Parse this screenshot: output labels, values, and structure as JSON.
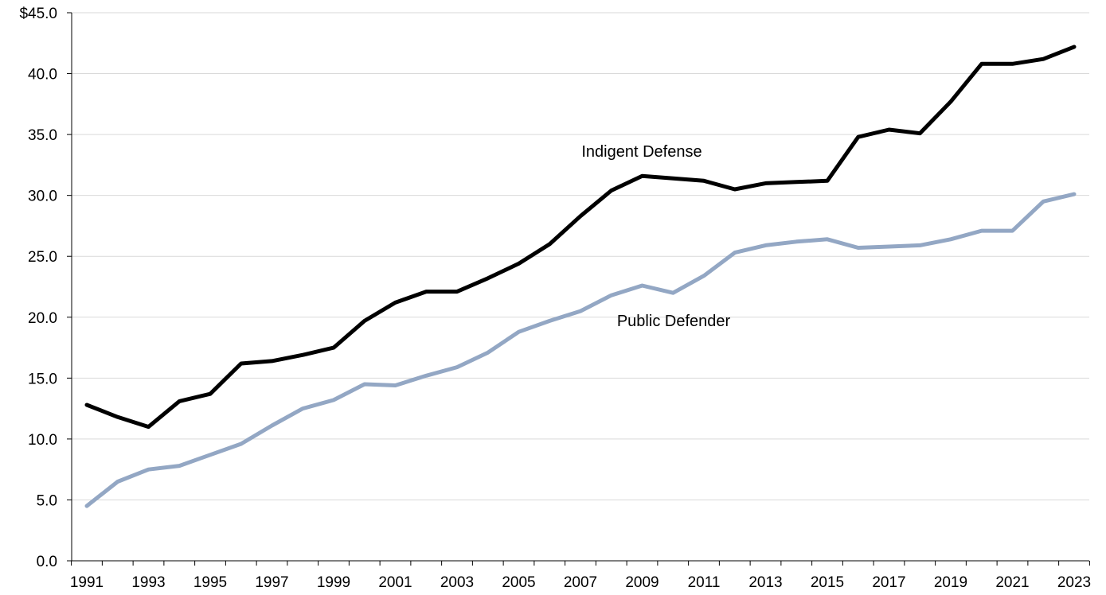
{
  "chart_data": {
    "type": "line",
    "title": "",
    "xlabel": "",
    "ylabel": "",
    "x": [
      1991,
      1992,
      1993,
      1994,
      1995,
      1996,
      1997,
      1998,
      1999,
      2000,
      2001,
      2002,
      2003,
      2004,
      2005,
      2006,
      2007,
      2008,
      2009,
      2010,
      2011,
      2012,
      2013,
      2014,
      2015,
      2016,
      2017,
      2018,
      2019,
      2020,
      2021,
      2022,
      2023
    ],
    "x_tick_labels": [
      "1991",
      "1993",
      "1995",
      "1997",
      "1999",
      "2001",
      "2003",
      "2005",
      "2007",
      "2009",
      "2011",
      "2013",
      "2015",
      "2017",
      "2019",
      "2021",
      "2023"
    ],
    "y_tick_labels": [
      "0.0",
      "5.0",
      "10.0",
      "15.0",
      "20.0",
      "25.0",
      "30.0",
      "35.0",
      "40.0",
      "$45.0"
    ],
    "y_ticks": [
      0,
      5,
      10,
      15,
      20,
      25,
      30,
      35,
      40,
      45
    ],
    "ylim": [
      0,
      45
    ],
    "grid": true,
    "legend": "none (inline series labels)",
    "series": [
      {
        "name": "Indigent Defense",
        "color": "#000000",
        "values": [
          12.8,
          11.8,
          11.0,
          13.1,
          13.7,
          16.2,
          16.4,
          16.9,
          17.5,
          19.7,
          21.2,
          22.1,
          22.1,
          23.2,
          24.4,
          26.0,
          28.3,
          30.4,
          31.6,
          31.4,
          31.2,
          30.5,
          31.0,
          31.1,
          31.2,
          34.8,
          35.4,
          35.1,
          37.7,
          40.8,
          40.8,
          41.2,
          42.2
        ]
      },
      {
        "name": "Public Defender",
        "color": "#93a7c4",
        "values": [
          4.5,
          6.5,
          7.5,
          7.8,
          8.7,
          9.6,
          11.1,
          12.5,
          13.2,
          14.5,
          14.4,
          15.2,
          15.9,
          17.1,
          18.8,
          19.7,
          20.5,
          21.8,
          22.6,
          22.0,
          23.4,
          25.3,
          25.9,
          26.2,
          26.4,
          25.7,
          25.8,
          25.9,
          26.4,
          27.1,
          27.1,
          29.5,
          30.1
        ]
      }
    ]
  }
}
